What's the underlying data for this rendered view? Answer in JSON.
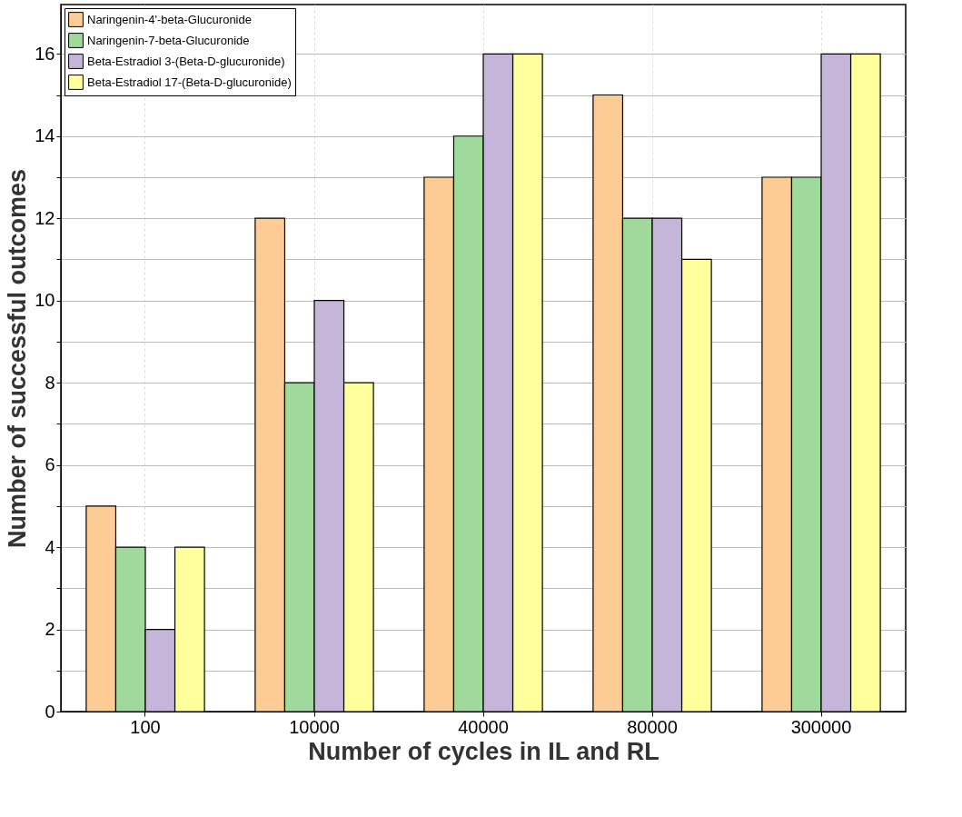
{
  "chart_data": {
    "type": "bar",
    "xlabel": "Number of cycles in IL and RL",
    "ylabel": "Number of successful outcomes",
    "categories": [
      "100",
      "10000",
      "40000",
      "80000",
      "300000"
    ],
    "series": [
      {
        "name": "Naringenin-4'-beta-Glucuronide",
        "color": "#fdcc95",
        "values": [
          5,
          12,
          13,
          15,
          13
        ]
      },
      {
        "name": "Naringenin-7-beta-Glucuronide",
        "color": "#a0d99c",
        "values": [
          4,
          8,
          14,
          12,
          13
        ]
      },
      {
        "name": "Beta-Estradiol 3-(Beta-D-glucuronide)",
        "color": "#c5b5d8",
        "values": [
          2,
          10,
          16,
          12,
          16
        ]
      },
      {
        "name": "Beta-Estradiol 17-(Beta-D-glucuronide)",
        "color": "#ffff9c",
        "values": [
          4,
          8,
          16,
          11,
          16
        ]
      }
    ],
    "ylim": [
      0,
      17.2
    ],
    "yticks": [
      0,
      {
        "value": 1,
        "label": null
      },
      2,
      {
        "value": 3,
        "label": null
      },
      4,
      {
        "value": 5,
        "label": null
      },
      6,
      {
        "value": 7,
        "label": null
      },
      8,
      {
        "value": 9,
        "label": null
      },
      10,
      {
        "value": 11,
        "label": null
      },
      12,
      {
        "value": 13,
        "label": null
      },
      14,
      {
        "value": 15,
        "label": null
      },
      16
    ],
    "grid": true,
    "legend": "top left"
  }
}
